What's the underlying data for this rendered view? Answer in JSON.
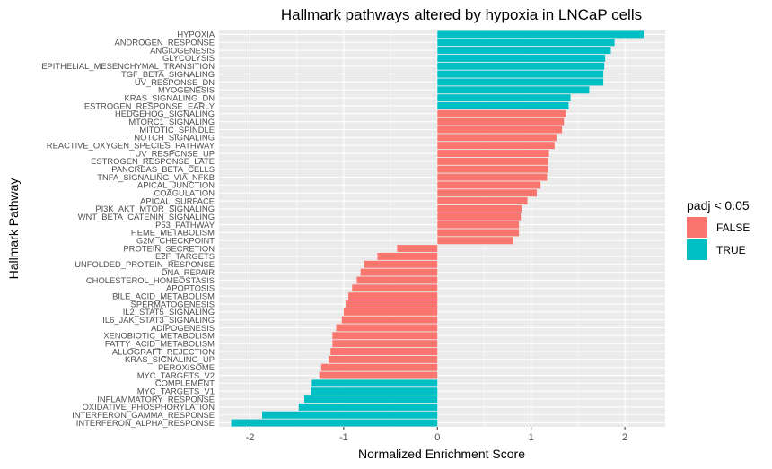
{
  "chart_data": {
    "type": "bar",
    "orientation": "horizontal",
    "title": "Hallmark pathways altered by hypoxia in LNCaP cells",
    "xlabel": "Normalized Enrichment Score",
    "ylabel": "Hallmark Pathway",
    "xlim": [
      -2.33,
      2.43
    ],
    "xticks": [
      -2,
      -1,
      0,
      1,
      2
    ],
    "xtick_labels": [
      "-2",
      "-1",
      "0",
      "1",
      "2"
    ],
    "grid": true,
    "legend": {
      "title": "padj < 0.05",
      "position": "right",
      "entries": [
        {
          "label": "FALSE",
          "color": "#F8766D"
        },
        {
          "label": "TRUE",
          "color": "#00BFC4"
        }
      ]
    },
    "colors": {
      "FALSE": "#F8766D",
      "TRUE": "#00BFC4",
      "panel": "#EBEBEB",
      "grid": "#FFFFFF"
    },
    "bars": [
      {
        "pathway": "HYPOXIA",
        "nes": 2.2,
        "padj_sig": "TRUE"
      },
      {
        "pathway": "ANDROGEN_RESPONSE",
        "nes": 1.89,
        "padj_sig": "TRUE"
      },
      {
        "pathway": "ANGIOGENESIS",
        "nes": 1.85,
        "padj_sig": "TRUE"
      },
      {
        "pathway": "GLYCOLYSIS",
        "nes": 1.79,
        "padj_sig": "TRUE"
      },
      {
        "pathway": "EPITHELIAL_MESENCHYMAL_TRANSITION",
        "nes": 1.78,
        "padj_sig": "TRUE"
      },
      {
        "pathway": "TGF_BETA_SIGNALING",
        "nes": 1.77,
        "padj_sig": "TRUE"
      },
      {
        "pathway": "UV_RESPONSE_DN",
        "nes": 1.77,
        "padj_sig": "TRUE"
      },
      {
        "pathway": "MYOGENESIS",
        "nes": 1.62,
        "padj_sig": "TRUE"
      },
      {
        "pathway": "KRAS_SIGNALING_DN",
        "nes": 1.42,
        "padj_sig": "TRUE"
      },
      {
        "pathway": "ESTROGEN_RESPONSE_EARLY",
        "nes": 1.4,
        "padj_sig": "TRUE"
      },
      {
        "pathway": "HEDGEHOG_SIGNALING",
        "nes": 1.37,
        "padj_sig": "FALSE"
      },
      {
        "pathway": "MTORC1_SIGNALING",
        "nes": 1.35,
        "padj_sig": "FALSE"
      },
      {
        "pathway": "MITOTIC_SPINDLE",
        "nes": 1.33,
        "padj_sig": "FALSE"
      },
      {
        "pathway": "NOTCH_SIGNALING",
        "nes": 1.27,
        "padj_sig": "FALSE"
      },
      {
        "pathway": "REACTIVE_OXYGEN_SPECIES_PATHWAY",
        "nes": 1.25,
        "padj_sig": "FALSE"
      },
      {
        "pathway": "UV_RESPONSE_UP",
        "nes": 1.19,
        "padj_sig": "FALSE"
      },
      {
        "pathway": "ESTROGEN_RESPONSE_LATE",
        "nes": 1.18,
        "padj_sig": "FALSE"
      },
      {
        "pathway": "PANCREAS_BETA_CELLS",
        "nes": 1.18,
        "padj_sig": "FALSE"
      },
      {
        "pathway": "TNFA_SIGNALING_VIA_NFKB",
        "nes": 1.17,
        "padj_sig": "FALSE"
      },
      {
        "pathway": "APICAL_JUNCTION",
        "nes": 1.1,
        "padj_sig": "FALSE"
      },
      {
        "pathway": "COAGULATION",
        "nes": 1.06,
        "padj_sig": "FALSE"
      },
      {
        "pathway": "APICAL_SURFACE",
        "nes": 0.96,
        "padj_sig": "FALSE"
      },
      {
        "pathway": "PI3K_AKT_MTOR_SIGNALING",
        "nes": 0.9,
        "padj_sig": "FALSE"
      },
      {
        "pathway": "WNT_BETA_CATENIN_SIGNALING",
        "nes": 0.89,
        "padj_sig": "FALSE"
      },
      {
        "pathway": "P53_PATHWAY",
        "nes": 0.87,
        "padj_sig": "FALSE"
      },
      {
        "pathway": "HEME_METABOLISM",
        "nes": 0.87,
        "padj_sig": "FALSE"
      },
      {
        "pathway": "G2M_CHECKPOINT",
        "nes": 0.81,
        "padj_sig": "FALSE"
      },
      {
        "pathway": "PROTEIN_SECRETION",
        "nes": -0.43,
        "padj_sig": "FALSE"
      },
      {
        "pathway": "E2F_TARGETS",
        "nes": -0.64,
        "padj_sig": "FALSE"
      },
      {
        "pathway": "UNFOLDED_PROTEIN_RESPONSE",
        "nes": -0.78,
        "padj_sig": "FALSE"
      },
      {
        "pathway": "DNA_REPAIR",
        "nes": -0.82,
        "padj_sig": "FALSE"
      },
      {
        "pathway": "CHOLESTEROL_HOMEOSTASIS",
        "nes": -0.86,
        "padj_sig": "FALSE"
      },
      {
        "pathway": "APOPTOSIS",
        "nes": -0.91,
        "padj_sig": "FALSE"
      },
      {
        "pathway": "BILE_ACID_METABOLISM",
        "nes": -0.95,
        "padj_sig": "FALSE"
      },
      {
        "pathway": "SPERMATOGENESIS",
        "nes": -0.98,
        "padj_sig": "FALSE"
      },
      {
        "pathway": "IL2_STAT5_SIGNALING",
        "nes": -1.0,
        "padj_sig": "FALSE"
      },
      {
        "pathway": "IL6_JAK_STAT3_SIGNALING",
        "nes": -1.02,
        "padj_sig": "FALSE"
      },
      {
        "pathway": "ADIPOGENESIS",
        "nes": -1.08,
        "padj_sig": "FALSE"
      },
      {
        "pathway": "XENOBIOTIC_METABOLISM",
        "nes": -1.12,
        "padj_sig": "FALSE"
      },
      {
        "pathway": "FATTY_ACID_METABOLISM",
        "nes": -1.12,
        "padj_sig": "FALSE"
      },
      {
        "pathway": "ALLOGRAFT_REJECTION",
        "nes": -1.14,
        "padj_sig": "FALSE"
      },
      {
        "pathway": "KRAS_SIGNALING_UP",
        "nes": -1.16,
        "padj_sig": "FALSE"
      },
      {
        "pathway": "PEROXISOME",
        "nes": -1.24,
        "padj_sig": "FALSE"
      },
      {
        "pathway": "MYC_TARGETS_V2",
        "nes": -1.26,
        "padj_sig": "FALSE"
      },
      {
        "pathway": "COMPLEMENT",
        "nes": -1.34,
        "padj_sig": "TRUE"
      },
      {
        "pathway": "MYC_TARGETS_V1",
        "nes": -1.35,
        "padj_sig": "TRUE"
      },
      {
        "pathway": "INFLAMMATORY_RESPONSE",
        "nes": -1.42,
        "padj_sig": "TRUE"
      },
      {
        "pathway": "OXIDATIVE_PHOSPHORYLATION",
        "nes": -1.48,
        "padj_sig": "TRUE"
      },
      {
        "pathway": "INTERFERON_GAMMA_RESPONSE",
        "nes": -1.87,
        "padj_sig": "TRUE"
      },
      {
        "pathway": "INTERFERON_ALPHA_RESPONSE",
        "nes": -2.2,
        "padj_sig": "TRUE"
      }
    ]
  }
}
